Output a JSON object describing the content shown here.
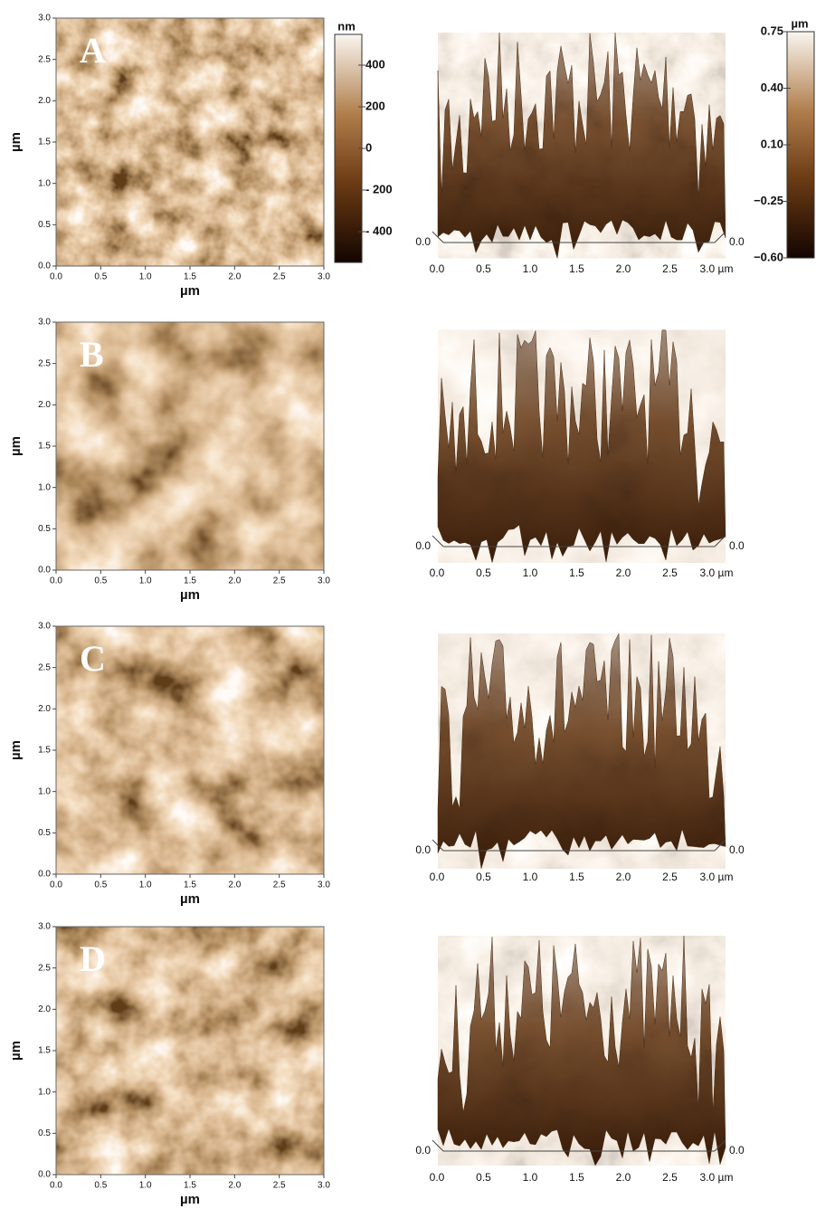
{
  "panels": [
    {
      "label": "A"
    },
    {
      "label": "B"
    },
    {
      "label": "C"
    },
    {
      "label": "D"
    }
  ],
  "map_axes": {
    "x_ticks": [
      "0.0",
      "0.5",
      "1.0",
      "1.5",
      "2.0",
      "2.5",
      "3.0"
    ],
    "y_ticks": [
      "0.0",
      "0.5",
      "1.0",
      "1.5",
      "2.0",
      "2.5",
      "3.0"
    ],
    "x_label": "µm",
    "y_label": "µm"
  },
  "view3d_axes": {
    "x_ticks": [
      "0.0",
      "0.5",
      "1.0",
      "1.5",
      "2.0",
      "2.5",
      "3.0 µm"
    ],
    "z_left": "0.0",
    "z_right": "0.0"
  },
  "colorbars": [
    {
      "unit": "nm",
      "ticks": [
        "400",
        "200",
        "0",
        "- 200",
        "- 400"
      ]
    },
    {
      "unit": "µm",
      "ticks": [
        "0.75",
        "0.40",
        "0.10",
        "−0.25",
        "−0.60"
      ]
    }
  ]
}
